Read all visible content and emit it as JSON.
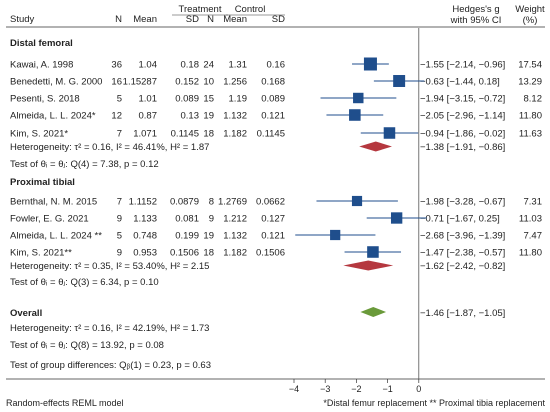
{
  "chart_data": {
    "type": "forest",
    "header": {
      "study": "Study",
      "treatment": "Treatment",
      "control": "Control",
      "n": "N",
      "mean": "Mean",
      "sd": "SD",
      "effect_line1": "Hedges's g",
      "effect_line2": "with 95% CI",
      "weight_line1": "Weight",
      "weight_line2": "(%)"
    },
    "groups": [
      {
        "name": "Distal femoral",
        "studies": [
          {
            "study": "Kawai, A. 1998",
            "tn": "36",
            "tmean": "1.04",
            "tsd": "0.18",
            "cn": "24",
            "cmean": "1.31",
            "csd": "0.16",
            "g": -1.55,
            "lo": -2.14,
            "hi": -0.96,
            "ci_text": "−1.55 [−2.14, −0.96]",
            "weight": "17.54"
          },
          {
            "study": "Benedetti, M. G. 2000",
            "tn": "16",
            "tmean": "1.15287",
            "tsd": "0.152",
            "cn": "10",
            "cmean": "1.256",
            "csd": "0.168",
            "g": -0.63,
            "lo": -1.44,
            "hi": 0.18,
            "ci_text": "−0.63 [−1.44,  0.18]",
            "weight": "13.29"
          },
          {
            "study": "Pesenti, S. 2018",
            "tn": "5",
            "tmean": "1.01",
            "tsd": "0.089",
            "cn": "15",
            "cmean": "1.19",
            "csd": "0.089",
            "g": -1.94,
            "lo": -3.15,
            "hi": -0.72,
            "ci_text": "−1.94 [−3.15, −0.72]",
            "weight": "8.12"
          },
          {
            "study": "Almeida, L. L. 2024*",
            "tn": "12",
            "tmean": "0.87",
            "tsd": "0.13",
            "cn": "19",
            "cmean": "1.132",
            "csd": "0.121",
            "g": -2.05,
            "lo": -2.96,
            "hi": -1.14,
            "ci_text": "−2.05 [−2.96, −1.14]",
            "weight": "11.80"
          },
          {
            "study": "Kim, S. 2021*",
            "tn": "7",
            "tmean": "1.071",
            "tsd": "0.1145",
            "cn": "18",
            "cmean": "1.182",
            "csd": "0.1145",
            "g": -0.94,
            "lo": -1.86,
            "hi": -0.02,
            "ci_text": "−0.94 [−1.86, −0.02]",
            "weight": "11.63"
          }
        ],
        "heterogeneity": "Heterogeneity: τ² = 0.16, I² = 46.41%, H² = 1.87",
        "test": "Test of θᵢ = θⱼ: Q(4) = 7.38, p = 0.12",
        "pooled": {
          "g": -1.38,
          "lo": -1.91,
          "hi": -0.86,
          "ci_text": "−1.38 [−1.91, −0.86]",
          "color": "#b5383f"
        }
      },
      {
        "name": "Proximal tibial",
        "studies": [
          {
            "study": "Bernthal, N. M. 2015",
            "tn": "7",
            "tmean": "1.1152",
            "tsd": "0.0879",
            "cn": "8",
            "cmean": "1.2769",
            "csd": "0.0662",
            "g": -1.98,
            "lo": -3.28,
            "hi": -0.67,
            "ci_text": "−1.98 [−3.28, −0.67]",
            "weight": "7.31"
          },
          {
            "study": "Fowler, E. G. 2021",
            "tn": "9",
            "tmean": "1.133",
            "tsd": "0.081",
            "cn": "9",
            "cmean": "1.212",
            "csd": "0.127",
            "g": -0.71,
            "lo": -1.67,
            "hi": 0.25,
            "ci_text": "−0.71 [−1.67,  0.25]",
            "weight": "11.03"
          },
          {
            "study": "Almeida, L. L. 2024 **",
            "tn": "5",
            "tmean": "0.748",
            "tsd": "0.199",
            "cn": "19",
            "cmean": "1.132",
            "csd": "0.121",
            "g": -2.68,
            "lo": -3.96,
            "hi": -1.39,
            "ci_text": "−2.68 [−3.96, −1.39]",
            "weight": "7.47"
          },
          {
            "study": "Kim, S. 2021**",
            "tn": "9",
            "tmean": "0.953",
            "tsd": "0.1506",
            "cn": "18",
            "cmean": "1.182",
            "csd": "0.1506",
            "g": -1.47,
            "lo": -2.38,
            "hi": -0.57,
            "ci_text": "−1.47 [−2.38, −0.57]",
            "weight": "11.80"
          }
        ],
        "heterogeneity": "Heterogeneity: τ² = 0.35, I² = 53.40%, H² = 2.15",
        "test": "Test of θᵢ = θⱼ: Q(3) = 6.34, p = 0.10",
        "pooled": {
          "g": -1.62,
          "lo": -2.42,
          "hi": -0.82,
          "ci_text": "−1.62 [−2.42, −0.82]",
          "color": "#b5383f"
        }
      }
    ],
    "overall": {
      "name": "Overall",
      "g": -1.46,
      "lo": -1.87,
      "hi": -1.05,
      "ci_text": "−1.46 [−1.87, −1.05]",
      "color": "#6a9a3a",
      "heterogeneity": "Heterogeneity: τ² = 0.16, I² = 42.19%, H² = 1.73",
      "test": "Test of θᵢ = θⱼ: Q(8) = 13.92, p = 0.08"
    },
    "group_diff_test": "Test of group differences: Qᵦ(1) = 0.23, p = 0.63",
    "x_axis": {
      "ticks": [
        -4,
        -3,
        -2,
        -1,
        0
      ],
      "range": [
        -4.3,
        0.3
      ]
    },
    "marker_color": "#1f4e8c",
    "footer_left": "Random-effects REML model",
    "footer_right": "*Distal femur replacement  ** Proximal tibia replacement"
  }
}
